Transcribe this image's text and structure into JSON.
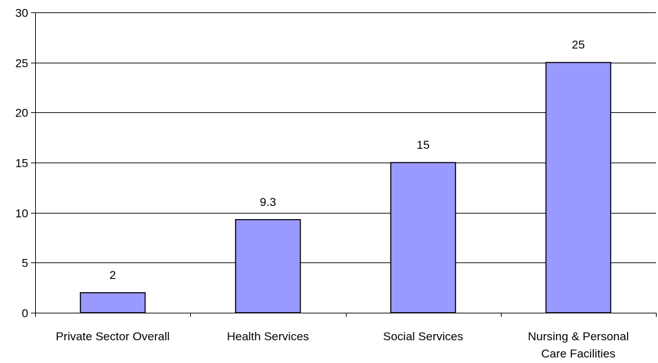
{
  "chart_data": {
    "type": "bar",
    "title": "",
    "xlabel": "",
    "ylabel": "",
    "categories": [
      [
        "Private Sector Overall"
      ],
      [
        "Health Services"
      ],
      [
        "Social Services"
      ],
      [
        "Nursing & Personal",
        "Care Facilities"
      ]
    ],
    "values": [
      2,
      9.3,
      15,
      25
    ],
    "value_labels": [
      "2",
      "9.3",
      "15",
      "25"
    ],
    "ylim": [
      0,
      30
    ],
    "yticks": [
      0,
      5,
      10,
      15,
      20,
      25,
      30
    ],
    "ytick_labels": [
      "0",
      "5",
      "10",
      "15",
      "20",
      "25",
      "30"
    ],
    "grid": true,
    "legend": "none",
    "colors": {
      "bar_fill": "#9999ff",
      "bar_stroke": "#000000",
      "grid": "#000000"
    }
  }
}
